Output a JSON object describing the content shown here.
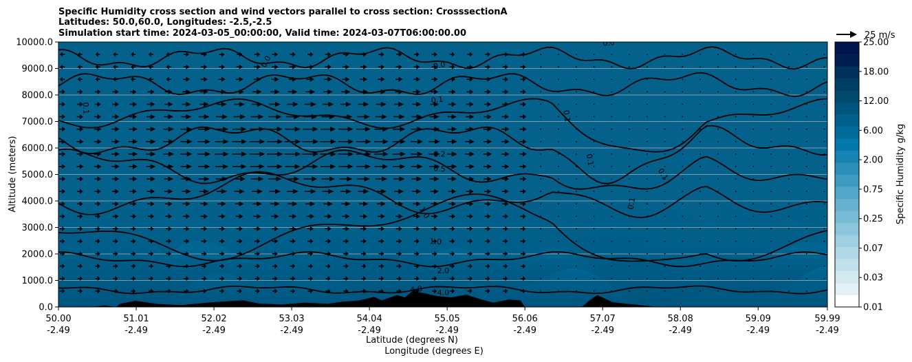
{
  "chart_data": {
    "type": "contour",
    "title_lines": [
      "Specific Humidity cross section and wind vectors parallel to cross section: CrosssectionA",
      "Latitudes: 50.0,60.0, Longitudes: -2.5,-2.5",
      "Simulation start time: 2024-03-05_00:00:00, Valid time: 2024-03-07T06:00:00.00"
    ],
    "ylabel": "Altitude (meters)",
    "xlabel_lines": [
      "Latitude (degrees N)",
      "Longitude (degrees E)"
    ],
    "ylim": [
      0,
      10000
    ],
    "yticks": [
      "0.0",
      "1000.0",
      "2000.0",
      "3000.0",
      "4000.0",
      "5000.0",
      "6000.0",
      "7000.0",
      "8000.0",
      "9000.0",
      "10000.0"
    ],
    "y_values": [
      0,
      1000,
      2000,
      3000,
      4000,
      5000,
      6000,
      7000,
      8000,
      9000,
      10000
    ],
    "xlim": [
      50.0,
      59.99
    ],
    "xticks": [
      {
        "lat": "50.00",
        "lon": "-2.49",
        "value": 50.0
      },
      {
        "lat": "51.01",
        "lon": "-2.49",
        "value": 51.01
      },
      {
        "lat": "52.02",
        "lon": "-2.49",
        "value": 52.02
      },
      {
        "lat": "53.03",
        "lon": "-2.49",
        "value": 53.03
      },
      {
        "lat": "54.04",
        "lon": "-2.49",
        "value": 54.04
      },
      {
        "lat": "55.05",
        "lon": "-2.49",
        "value": 55.05
      },
      {
        "lat": "56.06",
        "lon": "-2.49",
        "value": 56.06
      },
      {
        "lat": "57.07",
        "lon": "-2.49",
        "value": 57.07
      },
      {
        "lat": "58.08",
        "lon": "-2.49",
        "value": 58.08
      },
      {
        "lat": "59.09",
        "lon": "-2.49",
        "value": 59.09
      },
      {
        "lat": "59.99",
        "lon": "-2.49",
        "value": 59.99
      }
    ],
    "grid": true,
    "colorbar": {
      "label": "Specific Humidity g/kg",
      "tick_labels": [
        "0.01",
        "0.03",
        "0.07",
        "0.25",
        "0.75",
        "2.00",
        "6.00",
        "12.00",
        "18.00",
        "25.00"
      ],
      "colors": [
        "#ffffff",
        "#e3f1f6",
        "#d3e9f1",
        "#c1e0ec",
        "#b0d8e7",
        "#9fcfe1",
        "#8cc5dc",
        "#79bbd5",
        "#66b1cf",
        "#53a6c8",
        "#3f9bc1",
        "#2b8fba",
        "#1783b2",
        "#0478aa",
        "#006c9c",
        "#00618d",
        "#00557e",
        "#004a70",
        "#003e63",
        "#00305a",
        "#001e4e",
        "#001550"
      ]
    },
    "wind_key": {
      "label": "25 m/s",
      "value": 25
    },
    "contour_labels": [
      {
        "text": "0.0",
        "lat": 54.95,
        "alt": 9100,
        "angle": -12
      },
      {
        "text": "0.0",
        "lat": 52.7,
        "alt": 9250,
        "angle": -62
      },
      {
        "text": "0.0",
        "lat": 57.15,
        "alt": 9950,
        "angle": -5
      },
      {
        "text": "0.1",
        "lat": 54.92,
        "alt": 7800,
        "angle": -8
      },
      {
        "text": "0.1",
        "lat": 50.35,
        "alt": 7500,
        "angle": 88
      },
      {
        "text": "0.1",
        "lat": 56.6,
        "alt": 7200,
        "angle": 82
      },
      {
        "text": "0.1",
        "lat": 56.9,
        "alt": 5550,
        "angle": 80
      },
      {
        "text": "0.1",
        "lat": 57.85,
        "alt": 5000,
        "angle": 60
      },
      {
        "text": "0.1",
        "lat": 57.45,
        "alt": 3900,
        "angle": -80
      },
      {
        "text": "0.2",
        "lat": 54.95,
        "alt": 5750,
        "angle": 0
      },
      {
        "text": "0.5",
        "lat": 54.95,
        "alt": 5200,
        "angle": 5
      },
      {
        "text": "1.0",
        "lat": 54.75,
        "alt": 3550,
        "angle": 58
      },
      {
        "text": "1.0",
        "lat": 54.9,
        "alt": 2450,
        "angle": 4
      },
      {
        "text": "2.0",
        "lat": 55.0,
        "alt": 1350,
        "angle": 0
      },
      {
        "text": "4.0",
        "lat": 54.65,
        "alt": 650,
        "angle": -8
      },
      {
        "text": "4.0",
        "lat": 55.0,
        "alt": 520,
        "angle": 0
      }
    ],
    "terrain": [
      [
        50.0,
        0
      ],
      [
        50.4,
        0
      ],
      [
        50.6,
        60
      ],
      [
        50.75,
        0
      ],
      [
        50.8,
        120
      ],
      [
        51.0,
        230
      ],
      [
        51.3,
        110
      ],
      [
        51.6,
        70
      ],
      [
        52.0,
        180
      ],
      [
        52.4,
        250
      ],
      [
        52.6,
        130
      ],
      [
        52.9,
        90
      ],
      [
        53.2,
        160
      ],
      [
        53.5,
        120
      ],
      [
        53.7,
        200
      ],
      [
        53.9,
        240
      ],
      [
        54.1,
        380
      ],
      [
        54.2,
        250
      ],
      [
        54.4,
        450
      ],
      [
        54.5,
        360
      ],
      [
        54.6,
        600
      ],
      [
        54.75,
        520
      ],
      [
        54.9,
        420
      ],
      [
        55.1,
        360
      ],
      [
        55.3,
        460
      ],
      [
        55.5,
        280
      ],
      [
        55.65,
        160
      ],
      [
        55.85,
        280
      ],
      [
        56.0,
        250
      ],
      [
        56.06,
        0
      ],
      [
        56.8,
        0
      ],
      [
        56.9,
        250
      ],
      [
        57.0,
        450
      ],
      [
        57.2,
        180
      ],
      [
        57.6,
        60
      ],
      [
        57.8,
        0
      ],
      [
        59.99,
        0
      ]
    ]
  }
}
